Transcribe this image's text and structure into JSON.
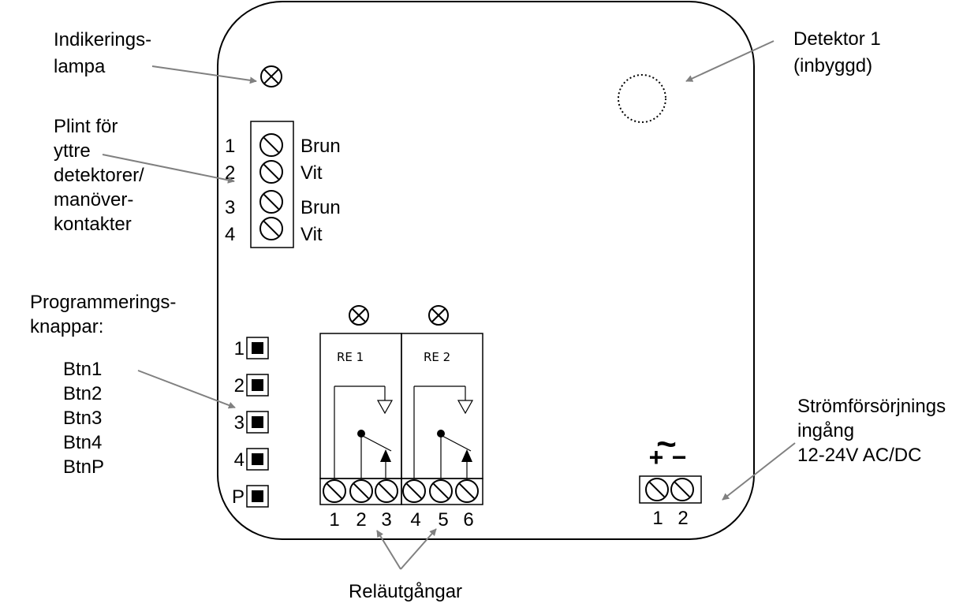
{
  "callouts": {
    "indicator_lamp": [
      "Indikerings-",
      "lampa"
    ],
    "detector": [
      "Detektor 1",
      "(inbyggd)"
    ],
    "terminal_block": [
      "Plint för",
      "yttre",
      "detektorer/",
      "manöver-",
      "kontakter"
    ],
    "program_buttons": [
      "Programmerings-",
      "knappar:"
    ],
    "button_list": [
      "Btn1",
      "Btn2",
      "Btn3",
      "Btn4",
      "BtnP"
    ],
    "power_input": [
      "Strömförsörjnings",
      "ingång",
      "12-24V AC/DC"
    ],
    "relay_outputs": "Reläutgångar"
  },
  "input_terminals": [
    {
      "num": "1",
      "wire": "Brun"
    },
    {
      "num": "2",
      "wire": "Vit"
    },
    {
      "num": "3",
      "wire": "Brun"
    },
    {
      "num": "4",
      "wire": "Vit"
    }
  ],
  "buttons": [
    "1",
    "2",
    "3",
    "4",
    "P"
  ],
  "relays": [
    {
      "label": "RE 1",
      "terminals": [
        "1",
        "2",
        "3"
      ]
    },
    {
      "label": "RE 2",
      "terminals": [
        "4",
        "5",
        "6"
      ]
    }
  ],
  "power": {
    "plus": "+",
    "minus": "−",
    "tilde": "~",
    "terminals": [
      "1",
      "2"
    ]
  },
  "colors": {
    "outline": "#000000",
    "arrow": "#808080"
  }
}
